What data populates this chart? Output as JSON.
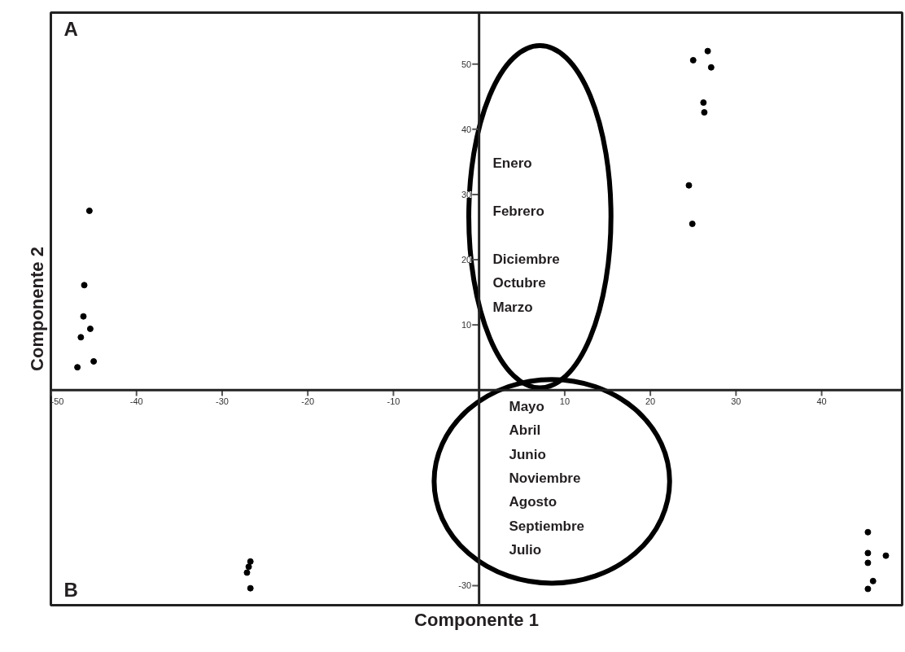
{
  "chart_data": {
    "type": "scatter",
    "xlabel": "Componente 1",
    "ylabel": "Componente 2",
    "x": [
      -45.5,
      -46.1,
      -46.2,
      -45.4,
      -46.5,
      -45.0,
      -46.9,
      26.7,
      25.0,
      27.1,
      26.2,
      26.3,
      24.5,
      24.9,
      -26.7,
      -26.9,
      -27.1,
      -26.7,
      45.4,
      45.4,
      45.4,
      47.5,
      46.0,
      45.4
    ],
    "values": [
      27.5,
      16.1,
      11.3,
      9.4,
      8.1,
      4.4,
      3.5,
      52.0,
      50.6,
      49.5,
      44.1,
      42.6,
      31.4,
      25.5,
      -26.3,
      -27.1,
      -28.0,
      -30.4,
      -21.8,
      -25.0,
      -26.5,
      -25.4,
      -29.3,
      -30.5
    ],
    "color": "#000000",
    "marker": "circle",
    "xlim": [
      -50,
      49.4
    ],
    "ylim": [
      -33,
      57.9
    ],
    "xticks": [
      -50,
      -40,
      -30,
      -20,
      -10,
      10,
      20,
      30,
      40
    ],
    "yticks": [
      -30,
      10,
      20,
      30,
      40,
      50
    ],
    "grid": false,
    "legend": false,
    "annotations": [
      "A",
      "B",
      "Enero\n\nFebrero\n\nDiciembre\nOctubre\nMarzo",
      "Mayo\nAbril\nJunio\nNoviembre\nAgosto\nSeptiembre\nJulio"
    ]
  }
}
